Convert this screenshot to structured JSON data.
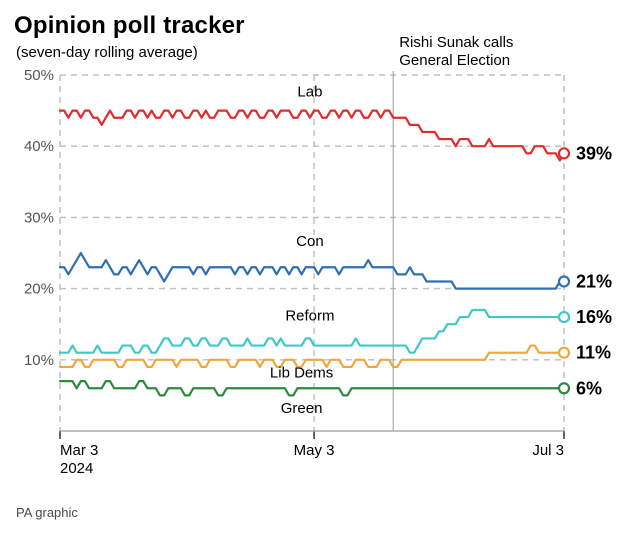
{
  "title": "Opinion poll tracker",
  "subtitle": "(seven-day rolling average)",
  "credit": "PA graphic",
  "chart": {
    "type": "line",
    "background_color": "#ffffff",
    "grid_color": "#bdbdbd",
    "grid_dash": "6,5",
    "axis_color": "#9a9a9a",
    "ylim": [
      0,
      50
    ],
    "yticks": [
      10,
      20,
      30,
      40,
      50
    ],
    "ytick_suffix": "%",
    "x_count": 122,
    "xticks": [
      {
        "index": 0,
        "label_line1": "Mar 3",
        "label_line2": "2024"
      },
      {
        "index": 61,
        "label_line1": "May 3",
        "label_line2": ""
      },
      {
        "index": 121,
        "label_line1": "Jul 3",
        "label_line2": ""
      }
    ],
    "annotation": {
      "index": 80,
      "line1": "Rishi Sunak calls",
      "line2": "General Election",
      "line_color": "#aaaaaa"
    },
    "line_width": 2.2,
    "marker_radius": 5,
    "series": [
      {
        "name": "Lab",
        "color": "#e22b2b",
        "label_x": 60,
        "label_y": 47,
        "end_label": "39%",
        "values": [
          45,
          45,
          44,
          45,
          45,
          44,
          45,
          45,
          44,
          44,
          43,
          44,
          45,
          44,
          44,
          44,
          45,
          45,
          44,
          45,
          45,
          44,
          45,
          44,
          44,
          45,
          45,
          44,
          45,
          45,
          44,
          44,
          45,
          45,
          44,
          45,
          44,
          44,
          45,
          45,
          45,
          44,
          44,
          45,
          45,
          44,
          45,
          45,
          44,
          44,
          45,
          45,
          44,
          45,
          45,
          45,
          44,
          44,
          45,
          45,
          44,
          45,
          45,
          44,
          44,
          45,
          45,
          44,
          45,
          45,
          44,
          45,
          45,
          44,
          44,
          45,
          45,
          44,
          45,
          45,
          44,
          44,
          44,
          44,
          43,
          43,
          43,
          42,
          42,
          42,
          42,
          41,
          41,
          41,
          41,
          40,
          41,
          41,
          41,
          40,
          40,
          40,
          40,
          41,
          40,
          40,
          40,
          40,
          40,
          40,
          40,
          40,
          39,
          39,
          40,
          40,
          40,
          39,
          39,
          39,
          38,
          39
        ]
      },
      {
        "name": "Con",
        "color": "#2f6fb3",
        "label_x": 60,
        "label_y": 26,
        "end_label": "21%",
        "values": [
          23,
          23,
          22,
          23,
          24,
          25,
          24,
          23,
          23,
          23,
          23,
          24,
          23,
          22,
          22,
          23,
          23,
          22,
          23,
          24,
          23,
          22,
          23,
          23,
          22,
          21,
          22,
          23,
          23,
          23,
          23,
          23,
          22,
          23,
          23,
          22,
          23,
          23,
          23,
          23,
          23,
          23,
          22,
          23,
          23,
          22,
          23,
          23,
          22,
          23,
          23,
          23,
          22,
          23,
          23,
          22,
          23,
          23,
          22,
          23,
          23,
          23,
          22,
          23,
          23,
          23,
          23,
          22,
          23,
          23,
          23,
          23,
          23,
          23,
          24,
          23,
          23,
          23,
          23,
          23,
          23,
          22,
          22,
          22,
          23,
          22,
          22,
          22,
          21,
          21,
          21,
          21,
          21,
          21,
          21,
          20,
          20,
          20,
          20,
          20,
          20,
          20,
          20,
          20,
          20,
          20,
          20,
          20,
          20,
          20,
          20,
          20,
          20,
          20,
          20,
          20,
          20,
          20,
          20,
          20,
          21,
          21
        ]
      },
      {
        "name": "Reform",
        "color": "#3fc8c8",
        "label_x": 60,
        "label_y": 15.5,
        "end_label": "16%",
        "values": [
          11,
          11,
          11,
          12,
          11,
          11,
          11,
          11,
          11,
          12,
          11,
          11,
          11,
          11,
          11,
          12,
          12,
          12,
          11,
          11,
          12,
          12,
          11,
          11,
          12,
          13,
          13,
          12,
          12,
          12,
          13,
          13,
          12,
          12,
          13,
          13,
          12,
          12,
          12,
          13,
          13,
          12,
          12,
          12,
          12,
          13,
          12,
          12,
          12,
          12,
          13,
          13,
          12,
          13,
          12,
          12,
          12,
          12,
          12,
          13,
          13,
          12,
          12,
          12,
          12,
          12,
          12,
          12,
          12,
          12,
          12,
          13,
          12,
          12,
          12,
          12,
          12,
          12,
          12,
          12,
          12,
          12,
          12,
          12,
          11,
          11,
          12,
          13,
          13,
          13,
          13,
          14,
          14,
          15,
          15,
          15,
          16,
          16,
          16,
          17,
          17,
          17,
          17,
          16,
          16,
          16,
          16,
          16,
          16,
          16,
          16,
          16,
          16,
          16,
          16,
          16,
          16,
          16,
          16,
          16,
          16,
          16
        ]
      },
      {
        "name": "Lib Dems",
        "color": "#f0a63c",
        "label_x": 58,
        "label_y": 7.5,
        "end_label": "11%",
        "values": [
          9,
          9,
          9,
          9,
          10,
          10,
          9,
          9,
          10,
          10,
          10,
          10,
          10,
          10,
          9,
          9,
          10,
          10,
          10,
          10,
          10,
          9,
          9,
          10,
          10,
          10,
          10,
          10,
          9,
          10,
          10,
          10,
          10,
          10,
          9,
          9,
          10,
          10,
          10,
          10,
          10,
          9,
          9,
          10,
          10,
          10,
          10,
          10,
          9,
          10,
          10,
          10,
          9,
          9,
          10,
          10,
          10,
          9,
          9,
          10,
          10,
          10,
          10,
          10,
          9,
          10,
          10,
          10,
          9,
          9,
          9,
          10,
          10,
          10,
          9,
          9,
          9,
          10,
          10,
          10,
          9,
          9,
          10,
          10,
          10,
          10,
          10,
          10,
          10,
          10,
          10,
          10,
          10,
          10,
          10,
          10,
          10,
          10,
          10,
          10,
          10,
          10,
          10,
          11,
          11,
          11,
          11,
          11,
          11,
          11,
          11,
          11,
          11,
          12,
          12,
          11,
          11,
          11,
          11,
          11,
          11,
          11
        ]
      },
      {
        "name": "Green",
        "color": "#2e8b3d",
        "label_x": 58,
        "label_y": 2.5,
        "end_label": "6%",
        "values": [
          7,
          7,
          7,
          7,
          6,
          7,
          7,
          6,
          6,
          6,
          6,
          7,
          7,
          6,
          6,
          6,
          6,
          6,
          6,
          7,
          7,
          6,
          6,
          6,
          5,
          5,
          6,
          6,
          6,
          6,
          5,
          5,
          6,
          6,
          6,
          6,
          6,
          6,
          5,
          5,
          6,
          6,
          6,
          6,
          6,
          6,
          6,
          6,
          6,
          6,
          6,
          6,
          6,
          6,
          6,
          5,
          5,
          6,
          6,
          6,
          6,
          6,
          6,
          6,
          6,
          6,
          6,
          6,
          5,
          5,
          6,
          6,
          6,
          6,
          6,
          6,
          6,
          6,
          6,
          6,
          6,
          6,
          6,
          6,
          6,
          6,
          6,
          6,
          6,
          6,
          6,
          6,
          6,
          6,
          6,
          6,
          6,
          6,
          6,
          6,
          6,
          6,
          6,
          6,
          6,
          6,
          6,
          6,
          6,
          6,
          6,
          6,
          6,
          6,
          6,
          6,
          6,
          6,
          6,
          6,
          6,
          6
        ]
      }
    ]
  }
}
